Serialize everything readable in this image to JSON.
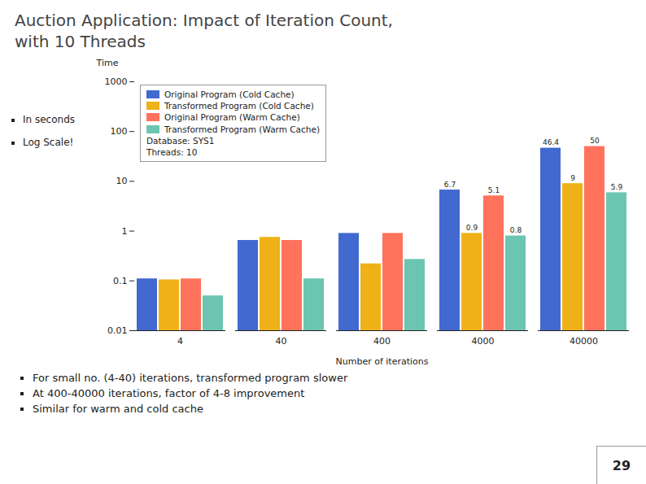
{
  "chart_data": {
    "type": "bar",
    "title": "Auction Application: Impact of Iteration Count,\nwith 10 Threads",
    "categories": [
      "4",
      "40",
      "400",
      "4000",
      "40000"
    ],
    "series": [
      {
        "name": "Original Program (Cold Cache)",
        "values": [
          0.11,
          0.65,
          0.9,
          6.7,
          46.4
        ],
        "value_labels": [
          null,
          null,
          null,
          "6.7",
          "46.4"
        ]
      },
      {
        "name": "Transformed Program (Cold Cache)",
        "values": [
          0.105,
          0.75,
          0.22,
          0.9,
          9.0
        ],
        "value_labels": [
          null,
          null,
          null,
          "0.9",
          "9"
        ]
      },
      {
        "name": "Original Program (Warm Cache)",
        "values": [
          0.11,
          0.65,
          0.9,
          5.1,
          50.0
        ],
        "value_labels": [
          null,
          null,
          null,
          "5.1",
          "50"
        ]
      },
      {
        "name": "Transformed Program (Warm Cache)",
        "values": [
          0.05,
          0.11,
          0.27,
          0.8,
          5.9
        ],
        "value_labels": [
          null,
          null,
          null,
          "0.8",
          "5.9"
        ]
      }
    ],
    "xlabel": "Number of iterations",
    "ylabel": "Time",
    "annotations": [
      "In seconds",
      "Log Scale!"
    ],
    "legend_notes": [
      "Database: SYS1",
      "Threads: 10"
    ],
    "bullets": [
      "For small no. (4-40) iterations, transformed program slower",
      "At 400-40000 iterations, factor of 4-8 improvement",
      "Similar for warm and cold cache"
    ],
    "page_number": "29",
    "log": "y",
    "grid": false,
    "legend": "upper left",
    "ylim": [
      0.01,
      1000
    ],
    "yticks": [
      0.01,
      0.1,
      1,
      10,
      100,
      1000
    ]
  }
}
